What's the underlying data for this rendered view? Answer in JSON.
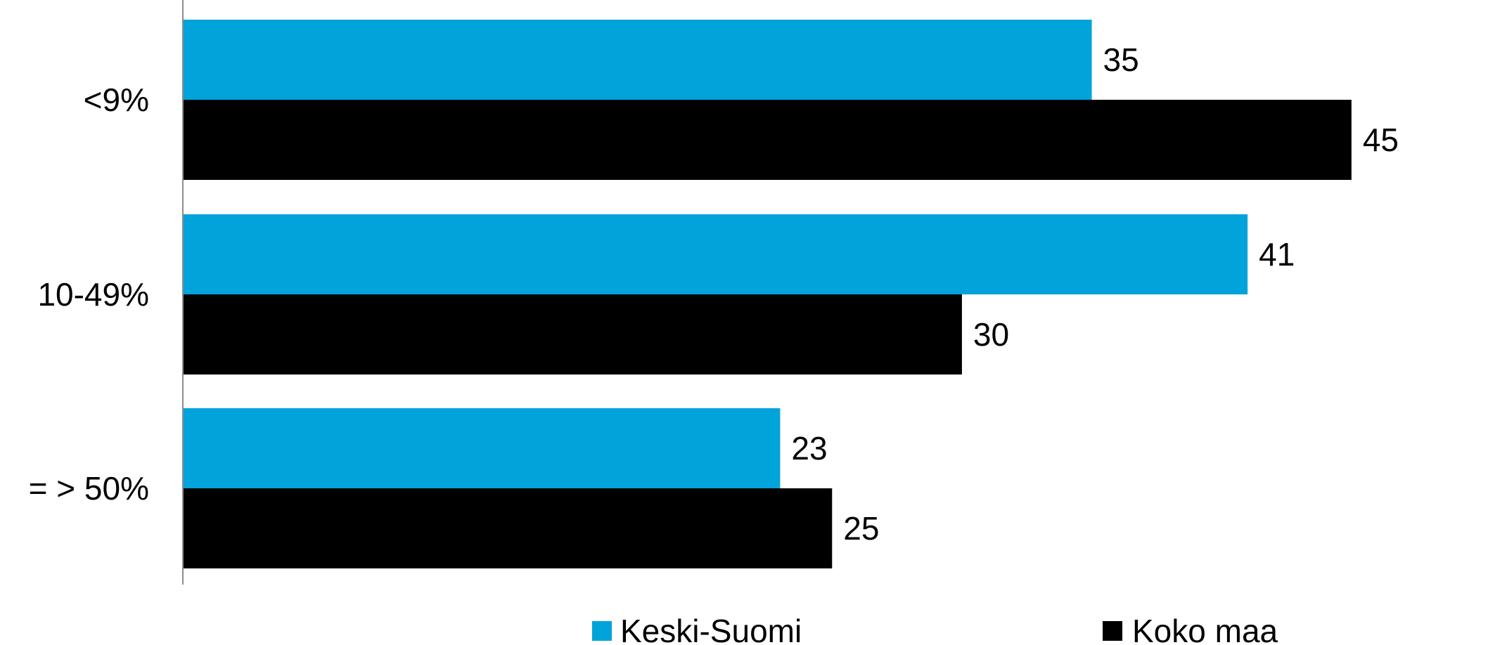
{
  "chart_data": {
    "type": "bar",
    "orientation": "horizontal",
    "categories": [
      "<9%",
      "10-49%",
      "= > 50%"
    ],
    "series": [
      {
        "name": "Keski-Suomi",
        "color": "#00a3da",
        "values": [
          35,
          41,
          23
        ]
      },
      {
        "name": "Koko maa",
        "color": "#000000",
        "values": [
          45,
          30,
          25
        ]
      }
    ],
    "xlim": [
      0,
      48
    ],
    "grid": false,
    "data_labels": true,
    "legend_position": "bottom"
  }
}
